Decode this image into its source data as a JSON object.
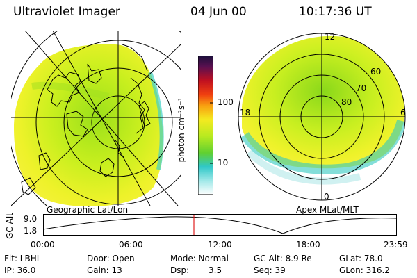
{
  "header": {
    "instrument": "Ultraviolet Imager",
    "date": "04 Jun 00",
    "time": "10:17:36 UT"
  },
  "left_panel": {
    "caption": "Geographic Lat/Lon"
  },
  "right_panel": {
    "caption": "Apex MLat/MLT",
    "mlt_labels": {
      "top": "12",
      "left": "18",
      "right": "6",
      "bottom": "0"
    },
    "lat_labels": [
      "60",
      "70",
      "80"
    ]
  },
  "colorbar": {
    "label": "photon cm⁻²s⁻¹",
    "ticks": [
      "100",
      "10"
    ],
    "scale": "log"
  },
  "altitude_plot": {
    "ylabel": "GC Alt",
    "yticks": [
      "9.0",
      "1.8"
    ],
    "xticks": [
      "00:00",
      "06:00",
      "12:00",
      "18:00",
      "23:59"
    ],
    "marker_time": "10:17"
  },
  "info": {
    "flt": "Flt: LBHL",
    "ip": "IP: 36.0",
    "door": "Door: Open",
    "gain": "Gain: 13",
    "mode": "Mode: Normal",
    "dsp_label": "Dsp:",
    "dsp_value": "3.5",
    "gc_alt": "GC Alt: 8.9 Re",
    "seq": "Seq: 39",
    "glat": "GLat: 78.0",
    "glon": "GLon: 316.2"
  },
  "colors": {
    "marker": "#e02020"
  }
}
